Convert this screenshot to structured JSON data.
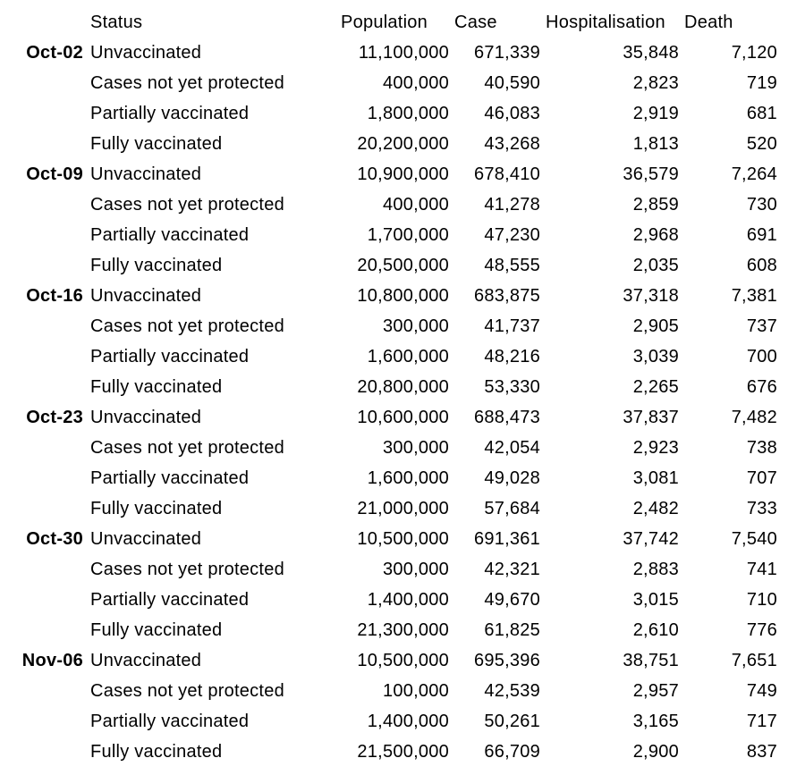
{
  "chart_data": {
    "type": "table",
    "columns": [
      "",
      "Status",
      "Population",
      "Case",
      "Hospitalisation",
      "Death"
    ],
    "rows": [
      {
        "date": "Oct-02",
        "status": "Unvaccinated",
        "population": "11,100,000",
        "case": "671,339",
        "hospitalisation": "35,848",
        "death": "7,120"
      },
      {
        "date": "",
        "status": "Cases not yet protected",
        "population": "400,000",
        "case": "40,590",
        "hospitalisation": "2,823",
        "death": "719"
      },
      {
        "date": "",
        "status": "Partially vaccinated",
        "population": "1,800,000",
        "case": "46,083",
        "hospitalisation": "2,919",
        "death": "681"
      },
      {
        "date": "",
        "status": "Fully vaccinated",
        "population": "20,200,000",
        "case": "43,268",
        "hospitalisation": "1,813",
        "death": "520"
      },
      {
        "date": "Oct-09",
        "status": "Unvaccinated",
        "population": "10,900,000",
        "case": "678,410",
        "hospitalisation": "36,579",
        "death": "7,264"
      },
      {
        "date": "",
        "status": "Cases not yet protected",
        "population": "400,000",
        "case": "41,278",
        "hospitalisation": "2,859",
        "death": "730"
      },
      {
        "date": "",
        "status": "Partially vaccinated",
        "population": "1,700,000",
        "case": "47,230",
        "hospitalisation": "2,968",
        "death": "691"
      },
      {
        "date": "",
        "status": "Fully vaccinated",
        "population": "20,500,000",
        "case": "48,555",
        "hospitalisation": "2,035",
        "death": "608"
      },
      {
        "date": "Oct-16",
        "status": "Unvaccinated",
        "population": "10,800,000",
        "case": "683,875",
        "hospitalisation": "37,318",
        "death": "7,381"
      },
      {
        "date": "",
        "status": "Cases not yet protected",
        "population": "300,000",
        "case": "41,737",
        "hospitalisation": "2,905",
        "death": "737"
      },
      {
        "date": "",
        "status": "Partially vaccinated",
        "population": "1,600,000",
        "case": "48,216",
        "hospitalisation": "3,039",
        "death": "700"
      },
      {
        "date": "",
        "status": "Fully vaccinated",
        "population": "20,800,000",
        "case": "53,330",
        "hospitalisation": "2,265",
        "death": "676"
      },
      {
        "date": "Oct-23",
        "status": "Unvaccinated",
        "population": "10,600,000",
        "case": "688,473",
        "hospitalisation": "37,837",
        "death": "7,482"
      },
      {
        "date": "",
        "status": "Cases not yet protected",
        "population": "300,000",
        "case": "42,054",
        "hospitalisation": "2,923",
        "death": "738"
      },
      {
        "date": "",
        "status": "Partially vaccinated",
        "population": "1,600,000",
        "case": "49,028",
        "hospitalisation": "3,081",
        "death": "707"
      },
      {
        "date": "",
        "status": "Fully vaccinated",
        "population": "21,000,000",
        "case": "57,684",
        "hospitalisation": "2,482",
        "death": "733"
      },
      {
        "date": "Oct-30",
        "status": "Unvaccinated",
        "population": "10,500,000",
        "case": "691,361",
        "hospitalisation": "37,742",
        "death": "7,540"
      },
      {
        "date": "",
        "status": "Cases not yet protected",
        "population": "300,000",
        "case": "42,321",
        "hospitalisation": "2,883",
        "death": "741"
      },
      {
        "date": "",
        "status": "Partially vaccinated",
        "population": "1,400,000",
        "case": "49,670",
        "hospitalisation": "3,015",
        "death": "710"
      },
      {
        "date": "",
        "status": "Fully vaccinated",
        "population": "21,300,000",
        "case": "61,825",
        "hospitalisation": "2,610",
        "death": "776"
      },
      {
        "date": "Nov-06",
        "status": "Unvaccinated",
        "population": "10,500,000",
        "case": "695,396",
        "hospitalisation": "38,751",
        "death": "7,651"
      },
      {
        "date": "",
        "status": "Cases not yet protected",
        "population": "100,000",
        "case": "42,539",
        "hospitalisation": "2,957",
        "death": "749"
      },
      {
        "date": "",
        "status": "Partially vaccinated",
        "population": "1,400,000",
        "case": "50,261",
        "hospitalisation": "3,165",
        "death": "717"
      },
      {
        "date": "",
        "status": "Fully vaccinated",
        "population": "21,500,000",
        "case": "66,709",
        "hospitalisation": "2,900",
        "death": "837"
      }
    ],
    "text_color": "#000000",
    "background_color": "#ffffff",
    "layout_hints": {
      "grid": "off",
      "date_column_bold": true,
      "numeric_columns_right_aligned": true,
      "headers_left_aligned": true
    }
  }
}
